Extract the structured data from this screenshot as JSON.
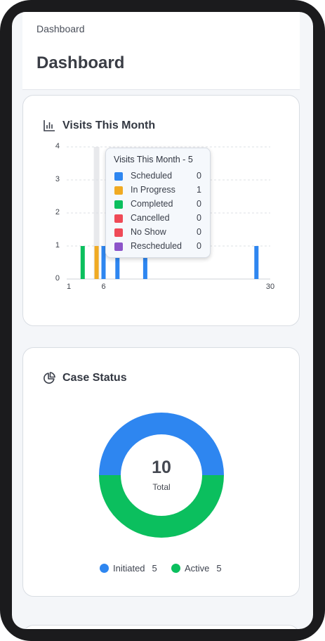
{
  "breadcrumb": "Dashboard",
  "page_title": "Dashboard",
  "visits_card": {
    "title": "Visits This Month",
    "icon": "bar-chart-icon"
  },
  "case_card": {
    "title": "Case Status",
    "icon": "pie-chart-icon"
  },
  "tooltip": {
    "title": "Visits This Month - 5",
    "rows": [
      {
        "label": "Scheduled",
        "value": "0",
        "color": "#2e86f0"
      },
      {
        "label": "In Progress",
        "value": "1",
        "color": "#f0aa23"
      },
      {
        "label": "Completed",
        "value": "0",
        "color": "#0bbf5e"
      },
      {
        "label": "Cancelled",
        "value": "0",
        "color": "#ef4a57"
      },
      {
        "label": "No Show",
        "value": "0",
        "color": "#ef4a57"
      },
      {
        "label": "Rescheduled",
        "value": "0",
        "color": "#8c54c9"
      }
    ]
  },
  "chart_data": [
    {
      "type": "bar",
      "title": "Visits This Month",
      "x_ticks": [
        "1",
        "6",
        "30"
      ],
      "y_ticks": [
        "0",
        "1",
        "2",
        "3",
        "4"
      ],
      "ylim": [
        0,
        4
      ],
      "xlim": [
        1,
        30
      ],
      "grid": true,
      "highlighted_day": 5,
      "series": [
        {
          "name": "Scheduled",
          "color": "#2e86f0",
          "points": [
            {
              "x": 6,
              "y": 1
            },
            {
              "x": 8,
              "y": 1
            },
            {
              "x": 12,
              "y": 1
            },
            {
              "x": 28,
              "y": 1
            }
          ]
        },
        {
          "name": "In Progress",
          "color": "#f0aa23",
          "points": [
            {
              "x": 5,
              "y": 1
            }
          ]
        },
        {
          "name": "Completed",
          "color": "#0bbf5e",
          "points": [
            {
              "x": 3,
              "y": 1
            }
          ]
        },
        {
          "name": "Cancelled",
          "color": "#ef4a57",
          "points": []
        },
        {
          "name": "No Show",
          "color": "#ef4a57",
          "points": []
        },
        {
          "name": "Rescheduled",
          "color": "#8c54c9",
          "points": []
        }
      ]
    },
    {
      "type": "pie",
      "title": "Case Status",
      "center_value": "10",
      "center_label": "Total",
      "slices": [
        {
          "label": "Initiated",
          "value": 5,
          "display": "5",
          "color": "#2e86f0"
        },
        {
          "label": "Active",
          "value": 5,
          "display": "5",
          "color": "#0bbf5e"
        }
      ]
    }
  ]
}
